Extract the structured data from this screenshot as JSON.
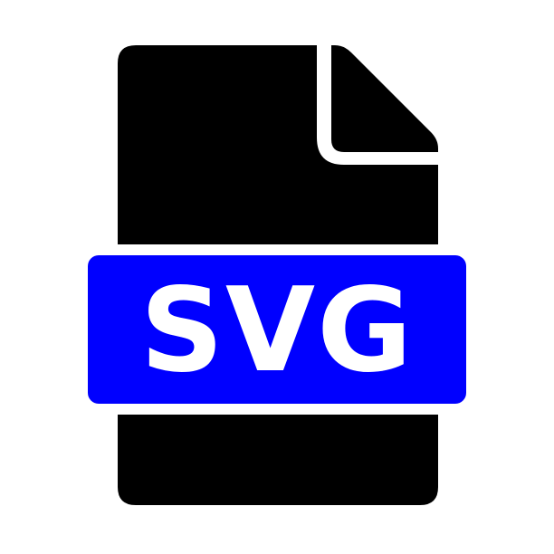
{
  "icon": {
    "name": "svg-file-icon",
    "document_color": "#000000",
    "badge_color": "#0000ff",
    "badge_text_color": "#ffffff",
    "label": "SVG"
  }
}
